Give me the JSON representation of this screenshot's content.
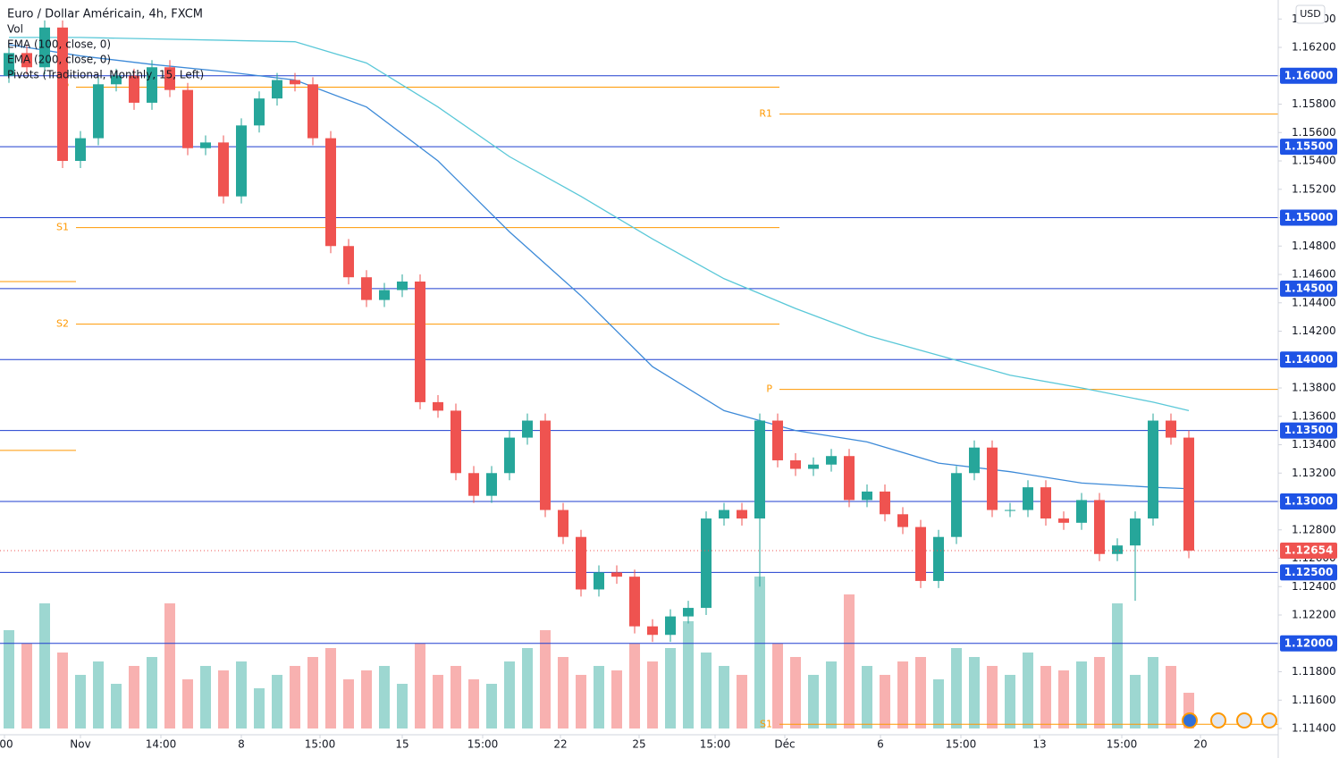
{
  "chart_data": {
    "type": "candlestick",
    "title": "Euro / Dollar Américain, 4h, FXCM",
    "volume_label": "Vol",
    "pivots_label": "Pivots (Traditional, Monthly, 15, Left)",
    "currency": "USD",
    "up_color": "#26a69a",
    "down_color": "#ef5350",
    "open": [
      1.16,
      1.1616,
      1.1606,
      1.1634,
      1.154,
      1.1556,
      1.1594,
      1.16,
      1.1581,
      1.1606,
      1.159,
      1.1549,
      1.1553,
      1.1515,
      1.1565,
      1.1584,
      1.1597,
      1.1594,
      1.1556,
      1.148,
      1.1458,
      1.1442,
      1.1449,
      1.1455,
      1.137,
      1.1364,
      1.132,
      1.1304,
      1.132,
      1.1345,
      1.1357,
      1.1294,
      1.1275,
      1.1238,
      1.125,
      1.1247,
      1.1212,
      1.1206,
      1.1219,
      1.1225,
      1.1288,
      1.1294,
      1.1288,
      1.1357,
      1.1329,
      1.1323,
      1.1326,
      1.1332,
      1.1301,
      1.1307,
      1.1291,
      1.1282,
      1.1244,
      1.1275,
      1.132,
      1.1338,
      1.1294,
      1.1294,
      1.131,
      1.1288,
      1.1285,
      1.1301,
      1.1263,
      1.1269,
      1.1288,
      1.1357,
      1.1345
    ],
    "high": [
      1.1621,
      1.1621,
      1.1639,
      1.1639,
      1.1561,
      1.1599,
      1.1605,
      1.1605,
      1.1611,
      1.1611,
      1.1595,
      1.1558,
      1.1558,
      1.157,
      1.1589,
      1.1602,
      1.1602,
      1.1599,
      1.1561,
      1.1485,
      1.1463,
      1.1454,
      1.146,
      1.146,
      1.1375,
      1.1369,
      1.1325,
      1.1325,
      1.135,
      1.1362,
      1.1362,
      1.1299,
      1.128,
      1.1255,
      1.1255,
      1.1252,
      1.1217,
      1.1224,
      1.123,
      1.1293,
      1.1299,
      1.1299,
      1.1362,
      1.1362,
      1.1334,
      1.1331,
      1.1337,
      1.1337,
      1.1312,
      1.1312,
      1.1296,
      1.1287,
      1.128,
      1.1325,
      1.1343,
      1.1343,
      1.1299,
      1.1315,
      1.1315,
      1.1293,
      1.1306,
      1.1306,
      1.1274,
      1.1293,
      1.1362,
      1.1362,
      1.135
    ],
    "low": [
      1.1595,
      1.1601,
      1.1601,
      1.1535,
      1.1535,
      1.1551,
      1.1589,
      1.1576,
      1.1576,
      1.1585,
      1.1544,
      1.1544,
      1.151,
      1.151,
      1.156,
      1.1579,
      1.1589,
      1.1551,
      1.1475,
      1.1453,
      1.1437,
      1.1437,
      1.1444,
      1.1365,
      1.1359,
      1.1315,
      1.1299,
      1.1299,
      1.1315,
      1.134,
      1.1289,
      1.127,
      1.1233,
      1.1233,
      1.1242,
      1.1207,
      1.1201,
      1.1201,
      1.1214,
      1.122,
      1.1283,
      1.1283,
      1.124,
      1.1324,
      1.1318,
      1.1318,
      1.1321,
      1.1296,
      1.1296,
      1.1286,
      1.1277,
      1.1239,
      1.1239,
      1.127,
      1.1315,
      1.1289,
      1.1289,
      1.1289,
      1.1283,
      1.128,
      1.128,
      1.1258,
      1.1258,
      1.123,
      1.1283,
      1.134,
      1.126
    ],
    "close": [
      1.1616,
      1.1606,
      1.1634,
      1.154,
      1.1556,
      1.1594,
      1.16,
      1.1581,
      1.1606,
      1.159,
      1.1549,
      1.1553,
      1.1515,
      1.1565,
      1.1584,
      1.1597,
      1.1594,
      1.1556,
      1.148,
      1.1458,
      1.1442,
      1.1449,
      1.1455,
      1.137,
      1.1364,
      1.132,
      1.1304,
      1.132,
      1.1345,
      1.1357,
      1.1294,
      1.1275,
      1.1238,
      1.125,
      1.1247,
      1.1212,
      1.1206,
      1.1219,
      1.1225,
      1.1288,
      1.1294,
      1.1288,
      1.1357,
      1.1329,
      1.1323,
      1.1326,
      1.1332,
      1.1301,
      1.1307,
      1.1291,
      1.1282,
      1.1244,
      1.1275,
      1.132,
      1.1338,
      1.1294,
      1.1294,
      1.131,
      1.1288,
      1.1285,
      1.1301,
      1.1263,
      1.1269,
      1.1288,
      1.1357,
      1.1345,
      1.12654
    ],
    "volume": [
      110,
      95,
      140,
      85,
      60,
      75,
      50,
      70,
      80,
      140,
      55,
      70,
      65,
      75,
      45,
      60,
      70,
      80,
      90,
      55,
      65,
      70,
      50,
      95,
      60,
      70,
      55,
      50,
      75,
      90,
      110,
      80,
      60,
      70,
      65,
      95,
      75,
      90,
      120,
      85,
      70,
      60,
      170,
      95,
      80,
      60,
      75,
      150,
      70,
      60,
      75,
      80,
      55,
      90,
      80,
      70,
      60,
      85,
      70,
      65,
      75,
      80,
      140,
      60,
      80,
      70,
      40
    ],
    "series": [
      {
        "name": "EMA (100, close, 0)",
        "color": "#3d8ad8",
        "x": [
          0,
          4,
          8,
          12,
          16,
          20,
          24,
          28,
          32,
          36,
          40,
          44,
          48,
          52,
          56,
          60,
          64,
          66
        ],
        "values": [
          1.1622,
          1.1614,
          1.1608,
          1.1603,
          1.1597,
          1.1578,
          1.154,
          1.149,
          1.1445,
          1.1395,
          1.1364,
          1.135,
          1.1342,
          1.1327,
          1.1321,
          1.1313,
          1.131,
          1.1309
        ]
      },
      {
        "name": "EMA (200, close, 0)",
        "color": "#5ac8d8",
        "x": [
          0,
          4,
          8,
          12,
          16,
          20,
          24,
          28,
          32,
          36,
          40,
          44,
          48,
          52,
          56,
          60,
          64,
          66
        ],
        "values": [
          1.1627,
          1.1627,
          1.1626,
          1.1625,
          1.1624,
          1.1609,
          1.1578,
          1.1543,
          1.1515,
          1.1485,
          1.1457,
          1.1436,
          1.1417,
          1.1403,
          1.1389,
          1.138,
          1.137,
          1.1364
        ]
      }
    ],
    "pivots": [
      {
        "label": "P",
        "value": 1.1592,
        "x": [
          3.75,
          43.1
        ]
      },
      {
        "label": "S1",
        "value": 1.1493,
        "x": [
          3.75,
          43.1
        ]
      },
      {
        "label": "S2",
        "value": 1.1425,
        "x": [
          3.75,
          43.1
        ]
      },
      {
        "label": null,
        "value": 1.1455,
        "x": [
          -0.5,
          3.75
        ]
      },
      {
        "label": null,
        "value": 1.1336,
        "x": [
          -0.5,
          3.75
        ]
      },
      {
        "label": "R1",
        "value": 1.1573,
        "x": [
          43.1,
          71
        ]
      },
      {
        "label": "P",
        "value": 1.1379,
        "x": [
          43.1,
          71
        ]
      },
      {
        "label": "S1",
        "value": 1.1143,
        "x": [
          43.1,
          71
        ]
      }
    ],
    "levels": [
      {
        "value": 1.16,
        "label": "1.16000"
      },
      {
        "value": 1.155,
        "label": "1.15500"
      },
      {
        "value": 1.15,
        "label": "1.15000"
      },
      {
        "value": 1.145,
        "label": "1.14500"
      },
      {
        "value": 1.14,
        "label": "1.14000"
      },
      {
        "value": 1.135,
        "label": "1.13500"
      },
      {
        "value": 1.13,
        "label": "1.13000"
      },
      {
        "value": 1.125,
        "label": "1.12500"
      },
      {
        "value": 1.12,
        "label": "1.12000"
      }
    ],
    "last_price": {
      "value": 1.12654,
      "label": "1.12654"
    },
    "ylim": [
      1.11356,
      1.16534
    ],
    "yticks": [
      {
        "value": 1.114,
        "label": "1.11400"
      },
      {
        "value": 1.116,
        "label": "1.11600"
      },
      {
        "value": 1.118,
        "label": "1.11800"
      },
      {
        "value": 1.12,
        "label": "1.12000"
      },
      {
        "value": 1.122,
        "label": "1.12200"
      },
      {
        "value": 1.124,
        "label": "1.12400"
      },
      {
        "value": 1.126,
        "label": "1.12600"
      },
      {
        "value": 1.128,
        "label": "1.12800"
      },
      {
        "value": 1.13,
        "label": "1.13000"
      },
      {
        "value": 1.132,
        "label": "1.13200"
      },
      {
        "value": 1.134,
        "label": "1.13400"
      },
      {
        "value": 1.136,
        "label": "1.13600"
      },
      {
        "value": 1.138,
        "label": "1.13800"
      },
      {
        "value": 1.14,
        "label": "1.14000"
      },
      {
        "value": 1.142,
        "label": "1.14200"
      },
      {
        "value": 1.144,
        "label": "1.14400"
      },
      {
        "value": 1.146,
        "label": "1.14600"
      },
      {
        "value": 1.148,
        "label": "1.14800"
      },
      {
        "value": 1.15,
        "label": "1.15000"
      },
      {
        "value": 1.152,
        "label": "1.15200"
      },
      {
        "value": 1.154,
        "label": "1.15400"
      },
      {
        "value": 1.156,
        "label": "1.15600"
      },
      {
        "value": 1.158,
        "label": "1.15800"
      },
      {
        "value": 1.16,
        "label": "1.16000"
      },
      {
        "value": 1.162,
        "label": "1.16200"
      },
      {
        "value": 1.164,
        "label": "1.16400"
      }
    ],
    "xlim": [
      -0.5,
      71
    ],
    "xticks": [
      {
        "value": -0.25,
        "label": ":00"
      },
      {
        "value": 4,
        "label": "Nov"
      },
      {
        "value": 8.5,
        "label": "14:00"
      },
      {
        "value": 13,
        "label": "8"
      },
      {
        "value": 17.4,
        "label": "15:00"
      },
      {
        "value": 22,
        "label": "15"
      },
      {
        "value": 26.5,
        "label": "15:00"
      },
      {
        "value": 30.85,
        "label": "22"
      },
      {
        "value": 35.25,
        "label": "25"
      },
      {
        "value": 39.5,
        "label": "15:00"
      },
      {
        "value": 43.4,
        "label": "Déc"
      },
      {
        "value": 48.75,
        "label": "6"
      },
      {
        "value": 53.25,
        "label": "15:00"
      },
      {
        "value": 57.65,
        "label": "13"
      },
      {
        "value": 62.25,
        "label": "15:00"
      },
      {
        "value": 66.65,
        "label": "20"
      }
    ]
  }
}
